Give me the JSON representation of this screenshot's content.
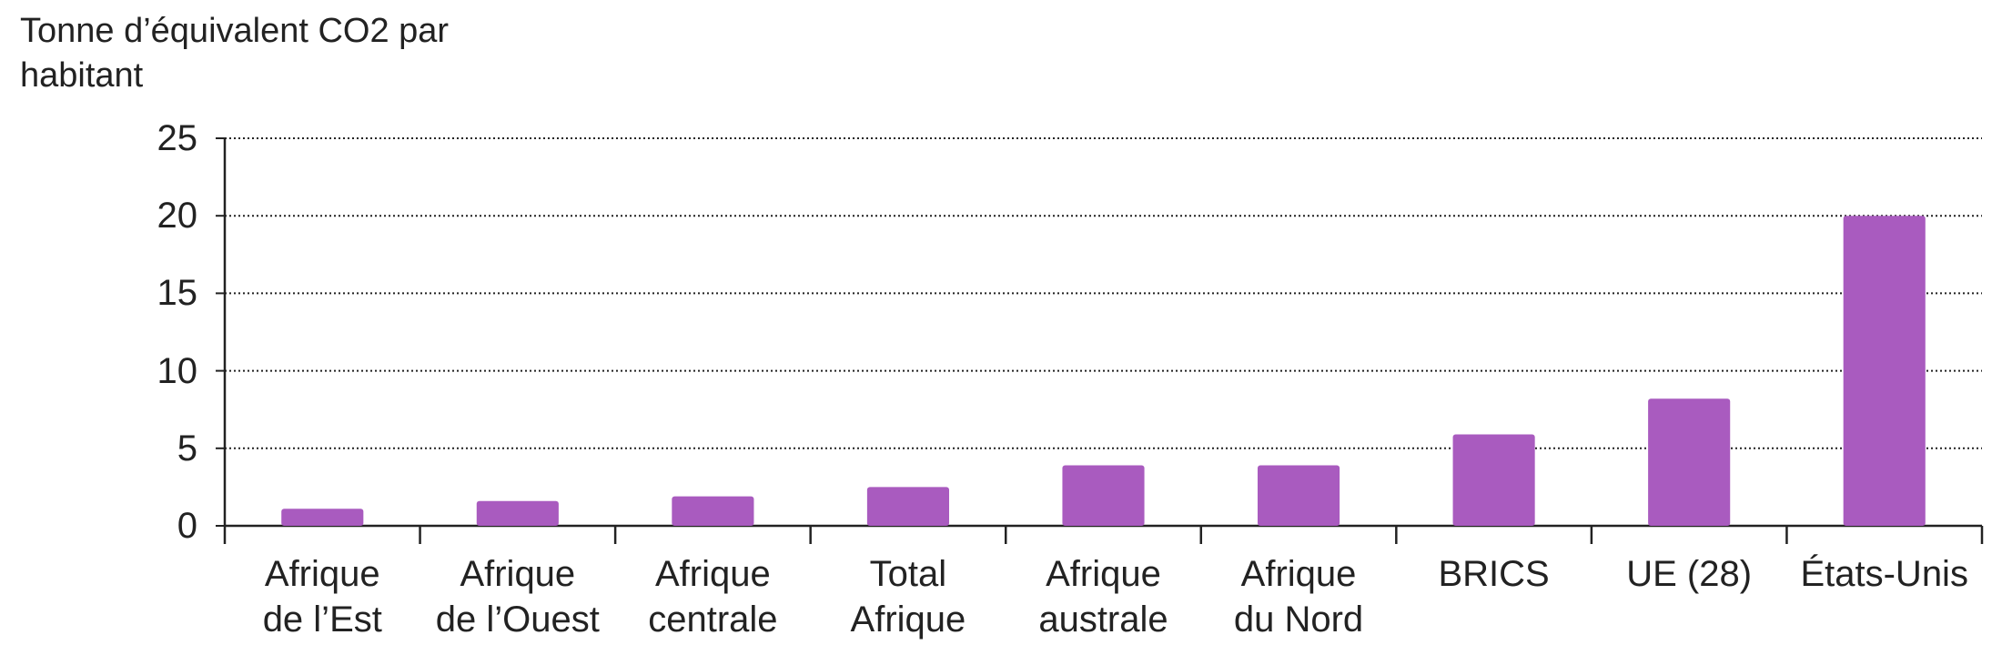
{
  "chart_data": {
    "type": "bar",
    "title": "Tonne d’équivalent CO2 par habitant",
    "categories": [
      "Afrique\nde l’Est",
      "Afrique\nde l’Ouest",
      "Afrique\ncentrale",
      "Total\nAfrique",
      "Afrique\naustrale",
      "Afrique\ndu Nord",
      "BRICS",
      "UE (28)",
      "États-Unis"
    ],
    "values": [
      1.1,
      1.6,
      1.9,
      2.5,
      3.9,
      3.9,
      5.9,
      8.2,
      20
    ],
    "color": "#a95bbf",
    "ylim": [
      0,
      25
    ],
    "yticks": [
      0,
      5,
      10,
      15,
      20,
      25
    ],
    "grid": true
  }
}
